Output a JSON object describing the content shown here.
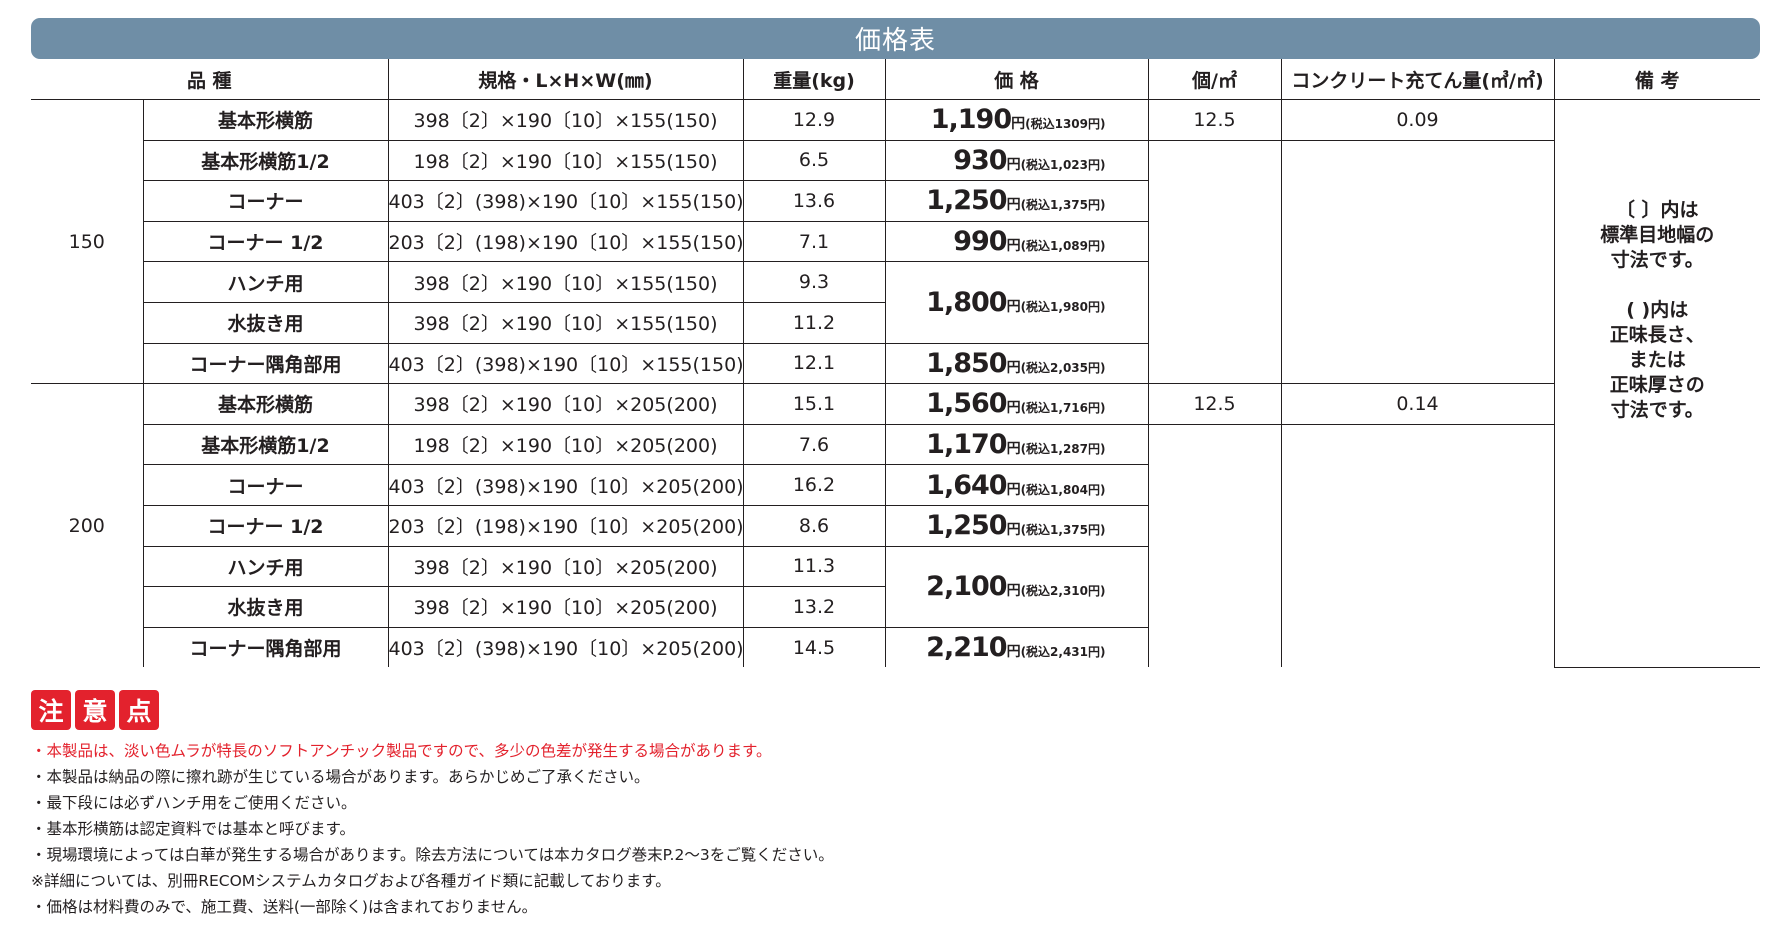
{
  "title": "価格表",
  "headers": {
    "variety": "品 種",
    "spec": "規格・L×H×W(㎜)",
    "weight": "重量(kg)",
    "price": "価 格",
    "per_m2": "個/㎡",
    "concrete": "コンクリート充てん量(㎥/㎡)",
    "remarks": "備 考"
  },
  "groups": [
    {
      "size": "150",
      "per_m2": "12.5",
      "concrete": "0.09",
      "rows": [
        {
          "name": "基本形横筋",
          "spec": "398〔2〕×190〔10〕×155(150)",
          "weight": "12.9",
          "price": "1,190",
          "yen": "円",
          "tax": "(税込1309円)"
        },
        {
          "name": "基本形横筋1/2",
          "spec": "198〔2〕×190〔10〕×155(150)",
          "weight": "6.5",
          "price": "930",
          "yen": "円",
          "tax": "(税込1,023円)"
        },
        {
          "name": "コーナー",
          "spec": "403〔2〕(398)×190〔10〕×155(150)",
          "weight": "13.6",
          "price": "1,250",
          "yen": "円",
          "tax": "(税込1,375円)"
        },
        {
          "name": "コーナー 1/2",
          "spec": "203〔2〕(198)×190〔10〕×155(150)",
          "weight": "7.1",
          "price": "990",
          "yen": "円",
          "tax": "(税込1,089円)"
        },
        {
          "name": "ハンチ用",
          "spec": "398〔2〕×190〔10〕×155(150)",
          "weight": "9.3",
          "price": "1,800",
          "yen": "円",
          "tax": "(税込1,980円)"
        },
        {
          "name": "水抜き用",
          "spec": "398〔2〕×190〔10〕×155(150)",
          "weight": "11.2"
        },
        {
          "name": "コーナー隅角部用",
          "spec": "403〔2〕(398)×190〔10〕×155(150)",
          "weight": "12.1",
          "price": "1,850",
          "yen": "円",
          "tax": "(税込2,035円)"
        }
      ]
    },
    {
      "size": "200",
      "per_m2": "12.5",
      "concrete": "0.14",
      "rows": [
        {
          "name": "基本形横筋",
          "spec": "398〔2〕×190〔10〕×205(200)",
          "weight": "15.1",
          "price": "1,560",
          "yen": "円",
          "tax": "(税込1,716円)"
        },
        {
          "name": "基本形横筋1/2",
          "spec": "198〔2〕×190〔10〕×205(200)",
          "weight": "7.6",
          "price": "1,170",
          "yen": "円",
          "tax": "(税込1,287円)"
        },
        {
          "name": "コーナー",
          "spec": "403〔2〕(398)×190〔10〕×205(200)",
          "weight": "16.2",
          "price": "1,640",
          "yen": "円",
          "tax": "(税込1,804円)"
        },
        {
          "name": "コーナー 1/2",
          "spec": "203〔2〕(198)×190〔10〕×205(200)",
          "weight": "8.6",
          "price": "1,250",
          "yen": "円",
          "tax": "(税込1,375円)"
        },
        {
          "name": "ハンチ用",
          "spec": "398〔2〕×190〔10〕×205(200)",
          "weight": "11.3",
          "price": "2,100",
          "yen": "円",
          "tax": "(税込2,310円)"
        },
        {
          "name": "水抜き用",
          "spec": "398〔2〕×190〔10〕×205(200)",
          "weight": "13.2"
        },
        {
          "name": "コーナー隅角部用",
          "spec": "403〔2〕(398)×190〔10〕×205(200)",
          "weight": "14.5",
          "price": "2,210",
          "yen": "円",
          "tax": "(税込2,431円)"
        }
      ]
    }
  ],
  "remarks": [
    "〔 〕内は",
    "標準目地幅の",
    "寸法です。",
    "",
    "( )内は",
    "正味長さ、",
    "または",
    "正味厚さの",
    "寸法です。"
  ],
  "caution_badges": [
    "注",
    "意",
    "点"
  ],
  "notes": [
    {
      "text": "・本製品は、淡い色ムラが特長のソフトアンチック製品ですので、多少の色差が発生する場合があります。",
      "color": "#e3222d"
    },
    {
      "text": "・本製品は納品の際に擦れ跡が生じている場合があります。あらかじめご了承ください。"
    },
    {
      "text": "・最下段には必ずハンチ用をご使用ください。"
    },
    {
      "text": "・基本形横筋は認定資料では基本と呼びます。"
    },
    {
      "text": "・現場環境によっては白華が発生する場合があります。除去方法については本カタログ巻末P.2〜3をご覧ください。"
    },
    {
      "text": "※詳細については、別冊RECOMシステムカタログおよび各種ガイド類に記載しております。"
    },
    {
      "text": "・価格は材料費のみで、施工費、送料(一部除く)は含まれておりません。"
    }
  ]
}
